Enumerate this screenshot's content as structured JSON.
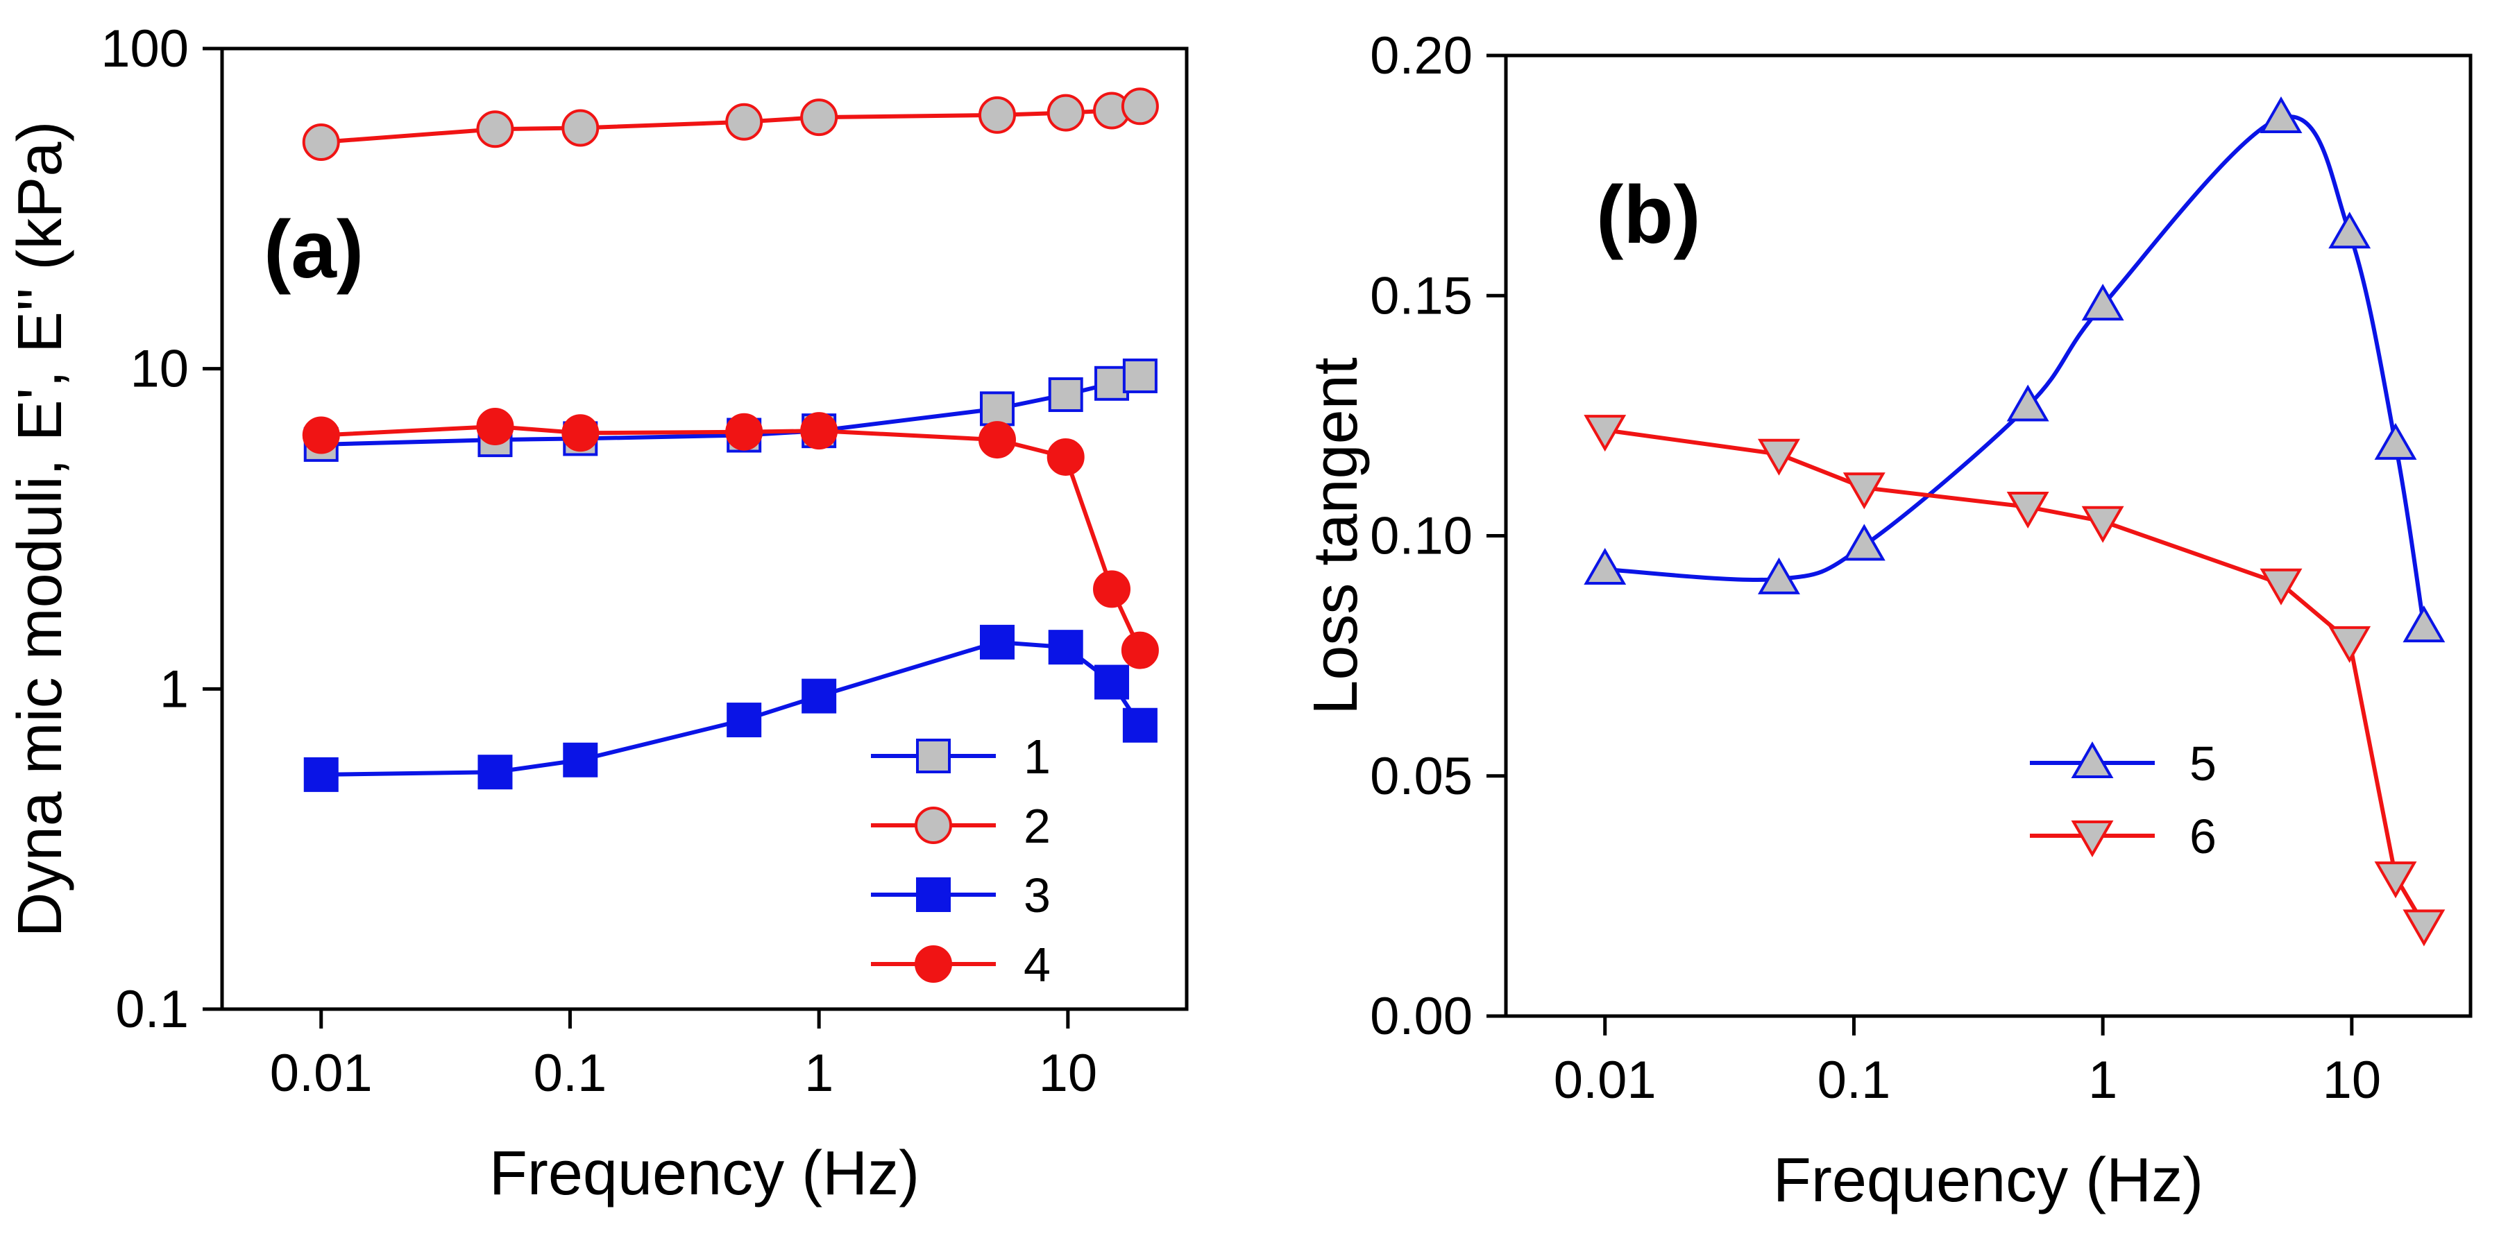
{
  "chart_data": [
    {
      "type": "line",
      "panel_label": "(a)",
      "xscale": "log",
      "yscale": "log",
      "xlabel": "Frequency (Hz)",
      "ylabel": "Dyna mic moduli, E', E'' (kPa)",
      "xlim": [
        0.004,
        30
      ],
      "ylim": [
        0.1,
        100
      ],
      "xticks": [
        0.01,
        0.1,
        1,
        10
      ],
      "xtick_labels": [
        "0.01",
        "0.1",
        "1",
        "10"
      ],
      "yticks": [
        0.1,
        1,
        10,
        100
      ],
      "ytick_labels": [
        "0.1",
        "1",
        "10",
        "100"
      ],
      "legend_position": "lower-right",
      "series": [
        {
          "name": "1",
          "marker": "square",
          "filled": false,
          "color": "#0a14e6",
          "fill": "#c0c0c0",
          "x": [
            0.01,
            0.05,
            0.11,
            0.5,
            1,
            5.2,
            9.8,
            15,
            19.5
          ],
          "y": [
            5.8,
            6.0,
            6.05,
            6.2,
            6.4,
            7.5,
            8.3,
            9.0,
            9.5
          ]
        },
        {
          "name": "2",
          "marker": "circle",
          "filled": false,
          "color": "#f01414",
          "fill": "#c0c0c0",
          "x": [
            0.01,
            0.05,
            0.11,
            0.5,
            1,
            5.2,
            9.8,
            15,
            19.5
          ],
          "y": [
            51,
            56,
            56.5,
            59,
            61,
            62,
            63,
            64,
            66
          ]
        },
        {
          "name": "3",
          "marker": "square",
          "filled": true,
          "color": "#0a14e6",
          "fill": "#0a14e6",
          "x": [
            0.01,
            0.05,
            0.11,
            0.5,
            1,
            5.2,
            9.8,
            15,
            19.5
          ],
          "y": [
            0.54,
            0.55,
            0.6,
            0.8,
            0.95,
            1.4,
            1.35,
            1.05,
            0.77
          ]
        },
        {
          "name": "4",
          "marker": "circle",
          "filled": true,
          "color": "#f01414",
          "fill": "#f01414",
          "x": [
            0.01,
            0.05,
            0.11,
            0.5,
            1,
            5.2,
            9.8,
            15,
            19.5
          ],
          "y": [
            6.2,
            6.6,
            6.3,
            6.35,
            6.4,
            6.0,
            5.3,
            2.05,
            1.32
          ]
        }
      ]
    },
    {
      "type": "line",
      "panel_label": "(b)",
      "xscale": "log",
      "yscale": "linear",
      "xlabel": "Frequency (Hz)",
      "ylabel": "Loss tangent",
      "xlim": [
        0.004,
        30
      ],
      "ylim": [
        0.0,
        0.2
      ],
      "xticks": [
        0.01,
        0.1,
        1,
        10
      ],
      "xtick_labels": [
        "0.01",
        "0.1",
        "1",
        "10"
      ],
      "yticks": [
        0.0,
        0.05,
        0.1,
        0.15,
        0.2
      ],
      "ytick_labels": [
        "0.00",
        "0.05",
        "0.10",
        "0.15",
        "0.20"
      ],
      "legend_position": "lower-center",
      "series": [
        {
          "name": "5",
          "marker": "triangle-up",
          "filled": false,
          "color": "#0a14e6",
          "fill": "#c0c0c0",
          "smooth": true,
          "x": [
            0.01,
            0.05,
            0.11,
            0.5,
            1,
            5.2,
            9.8,
            15,
            19.5
          ],
          "y": [
            0.093,
            0.091,
            0.098,
            0.127,
            0.148,
            0.187,
            0.163,
            0.119,
            0.081
          ]
        },
        {
          "name": "6",
          "marker": "triangle-down",
          "filled": false,
          "color": "#f01414",
          "fill": "#c0c0c0",
          "x": [
            0.01,
            0.05,
            0.11,
            0.5,
            1,
            5.2,
            9.8,
            15,
            19.5
          ],
          "y": [
            0.122,
            0.117,
            0.11,
            0.106,
            0.103,
            0.09,
            0.078,
            0.029,
            0.019
          ]
        }
      ]
    }
  ]
}
